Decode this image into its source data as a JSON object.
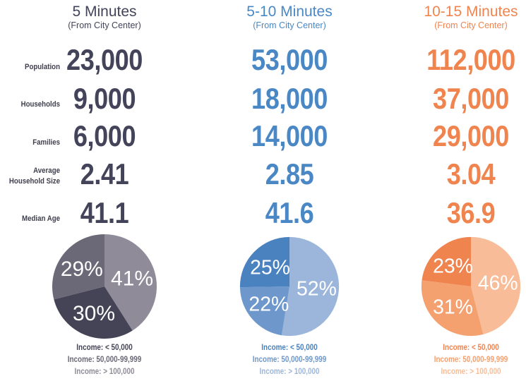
{
  "rows": [
    {
      "label": "Population"
    },
    {
      "label": "Households"
    },
    {
      "label": "Families"
    },
    {
      "label": "Average Household Size"
    },
    {
      "label": "Median Age"
    }
  ],
  "columns": [
    {
      "title": "5 Minutes",
      "subtitle": "(From City Center)",
      "values": [
        "23,000",
        "9,000",
        "6,000",
        "2.41",
        "41.1"
      ],
      "color": "#43435a",
      "pie_colors": [
        "#8f8b98",
        "#454457",
        "#6b6877"
      ],
      "legend": [
        "Income: < 50,000",
        "Income: 50,000-99,999",
        "Income: > 100,000"
      ],
      "legend_colors": [
        "#454457",
        "#6b6877",
        "#8f8b98"
      ]
    },
    {
      "title": "5-10 Minutes",
      "subtitle": "(From City Center)",
      "values": [
        "53,000",
        "18,000",
        "14,000",
        "2.85",
        "41.6"
      ],
      "color": "#4a87c5",
      "pie_colors": [
        "#9bb6da",
        "#6e97cb",
        "#4a82c0"
      ],
      "legend": [
        "Income: < 50,000",
        "Income: 50,000-99,999",
        "Income: > 100,000"
      ],
      "legend_colors": [
        "#4a82c0",
        "#6e97cb",
        "#9bb6da"
      ]
    },
    {
      "title": "10-15 Minutes",
      "subtitle": "(From City Center)",
      "values": [
        "112,000",
        "37,000",
        "29,000",
        "3.04",
        "36.9"
      ],
      "color": "#f0844f",
      "pie_colors": [
        "#f8bd98",
        "#f4a06f",
        "#f0844f"
      ],
      "legend": [
        "Income: < 50,000",
        "Income: 50,000-99,999",
        "Income: > 100,000"
      ],
      "legend_colors": [
        "#f0844f",
        "#f4a06f",
        "#f8bd98"
      ]
    }
  ],
  "chart_data": [
    {
      "type": "pie",
      "slices": [
        {
          "label": "41%",
          "value": 41
        },
        {
          "label": "30%",
          "value": 30
        },
        {
          "label": "29%",
          "value": 29
        }
      ]
    },
    {
      "type": "pie",
      "slices": [
        {
          "label": "52%",
          "value": 52
        },
        {
          "label": "22%",
          "value": 22
        },
        {
          "label": "25%",
          "value": 25
        }
      ]
    },
    {
      "type": "pie",
      "slices": [
        {
          "label": "46%",
          "value": 46
        },
        {
          "label": "31%",
          "value": 31
        },
        {
          "label": "23%",
          "value": 23
        }
      ]
    }
  ]
}
